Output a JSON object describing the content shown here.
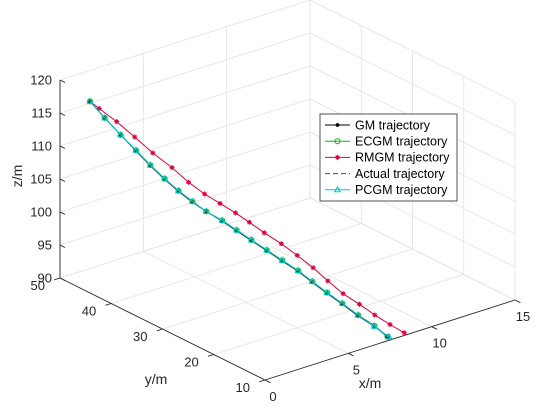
{
  "chart_data": {
    "type": "line3d",
    "xlabel": "x/m",
    "ylabel": "y/m",
    "zlabel": "z/m",
    "x_ticks": [
      "0",
      "5",
      "10",
      "15"
    ],
    "y_ticks": [
      "10",
      "20",
      "30",
      "40",
      "50"
    ],
    "z_ticks": [
      "90",
      "95",
      "100",
      "105",
      "110",
      "115",
      "120"
    ],
    "xlim": [
      0,
      15
    ],
    "ylim": [
      10,
      50
    ],
    "zlim": [
      90,
      120
    ],
    "grid": true,
    "legend_position": "right-inside",
    "series": [
      {
        "name": "GM trajectory",
        "color": "#000000",
        "marker": "dot",
        "line": "solid",
        "points": [
          [
            7.5,
            10.5,
            90.3
          ],
          [
            7.3,
            12.4,
            91.3
          ],
          [
            7.0,
            14.6,
            92.3
          ],
          [
            6.7,
            16.7,
            93.5
          ],
          [
            6.4,
            18.7,
            94.6
          ],
          [
            6.1,
            20.6,
            95.8
          ],
          [
            5.8,
            22.4,
            97.0
          ],
          [
            5.4,
            24.2,
            98.2
          ],
          [
            5.0,
            25.9,
            99.4
          ],
          [
            4.6,
            27.6,
            100.6
          ],
          [
            4.2,
            29.2,
            101.8
          ],
          [
            3.8,
            30.7,
            103.0
          ],
          [
            3.3,
            32.2,
            104.3
          ],
          [
            2.9,
            33.6,
            105.5
          ],
          [
            2.5,
            35.0,
            106.9
          ],
          [
            2.1,
            36.4,
            108.5
          ],
          [
            1.7,
            37.9,
            110.3
          ],
          [
            1.3,
            39.4,
            112.3
          ],
          [
            0.9,
            41.1,
            114.4
          ],
          [
            0.5,
            42.9,
            116.6
          ],
          [
            0.2,
            44.8,
            118.6
          ]
        ]
      },
      {
        "name": "ECGM trajectory",
        "color": "#00c000",
        "marker": "circle",
        "line": "solid",
        "points": [
          [
            7.5,
            10.5,
            90.3
          ],
          [
            7.3,
            12.4,
            91.4
          ],
          [
            7.0,
            14.6,
            92.4
          ],
          [
            6.7,
            16.7,
            93.6
          ],
          [
            6.4,
            18.7,
            94.7
          ],
          [
            6.1,
            20.6,
            95.9
          ],
          [
            5.8,
            22.4,
            97.1
          ],
          [
            5.4,
            24.2,
            98.3
          ],
          [
            5.0,
            25.9,
            99.5
          ],
          [
            4.6,
            27.6,
            100.7
          ],
          [
            4.2,
            29.2,
            101.9
          ],
          [
            3.8,
            30.7,
            103.1
          ],
          [
            3.3,
            32.2,
            104.3
          ],
          [
            2.9,
            33.6,
            105.6
          ],
          [
            2.5,
            35.0,
            107.0
          ],
          [
            2.1,
            36.4,
            108.6
          ],
          [
            1.7,
            37.9,
            110.4
          ],
          [
            1.3,
            39.4,
            112.4
          ],
          [
            0.9,
            41.1,
            114.4
          ],
          [
            0.5,
            42.9,
            116.6
          ],
          [
            0.2,
            44.8,
            118.6
          ]
        ]
      },
      {
        "name": "RMGM trajectory",
        "color": "#e0003c",
        "marker": "star",
        "line": "solid",
        "points": [
          [
            8.6,
            10.8,
            89.9
          ],
          [
            8.3,
            12.6,
            90.7
          ],
          [
            8.0,
            14.6,
            91.6
          ],
          [
            7.7,
            16.6,
            92.7
          ],
          [
            7.3,
            18.5,
            93.9
          ],
          [
            7.0,
            20.5,
            95.3
          ],
          [
            6.7,
            22.4,
            96.8
          ],
          [
            6.3,
            24.2,
            98.3
          ],
          [
            5.9,
            26.0,
            99.7
          ],
          [
            5.4,
            27.7,
            101.1
          ],
          [
            5.0,
            29.3,
            102.4
          ],
          [
            4.6,
            30.7,
            103.6
          ],
          [
            4.1,
            32.1,
            104.9
          ],
          [
            3.6,
            33.5,
            106.2
          ],
          [
            3.1,
            35.0,
            107.8
          ],
          [
            2.6,
            36.6,
            109.8
          ],
          [
            2.0,
            38.4,
            111.8
          ],
          [
            1.5,
            40.3,
            113.9
          ],
          [
            1.0,
            42.2,
            115.9
          ],
          [
            0.5,
            44.0,
            117.6
          ],
          [
            0.2,
            44.8,
            118.6
          ]
        ]
      },
      {
        "name": "Actual trajectory",
        "color": "#4040c0",
        "marker": "none",
        "line": "dashed",
        "points": [
          [
            7.5,
            10.5,
            90.3
          ],
          [
            7.3,
            12.4,
            91.4
          ],
          [
            7.0,
            14.6,
            92.4
          ],
          [
            6.7,
            16.7,
            93.6
          ],
          [
            6.4,
            18.7,
            94.7
          ],
          [
            6.1,
            20.6,
            95.9
          ],
          [
            5.8,
            22.4,
            97.1
          ],
          [
            5.4,
            24.2,
            98.3
          ],
          [
            5.0,
            25.9,
            99.5
          ],
          [
            4.6,
            27.6,
            100.7
          ],
          [
            4.2,
            29.2,
            101.9
          ],
          [
            3.8,
            30.7,
            103.1
          ],
          [
            3.3,
            32.2,
            104.3
          ],
          [
            2.9,
            33.6,
            105.6
          ],
          [
            2.5,
            35.0,
            107.0
          ],
          [
            2.1,
            36.4,
            108.6
          ],
          [
            1.7,
            37.9,
            110.4
          ],
          [
            1.3,
            39.4,
            112.4
          ],
          [
            0.9,
            41.1,
            114.4
          ],
          [
            0.5,
            42.9,
            116.6
          ],
          [
            0.2,
            44.8,
            118.6
          ]
        ]
      },
      {
        "name": "PCGM trajectory",
        "color": "#00c8c8",
        "marker": "triangle",
        "line": "solid",
        "points": [
          [
            7.6,
            10.5,
            90.2
          ],
          [
            7.3,
            12.4,
            91.3
          ],
          [
            7.0,
            14.6,
            92.4
          ],
          [
            6.7,
            16.7,
            93.6
          ],
          [
            6.4,
            18.7,
            94.7
          ],
          [
            6.1,
            20.6,
            95.9
          ],
          [
            5.8,
            22.4,
            97.1
          ],
          [
            5.4,
            24.2,
            98.3
          ],
          [
            5.0,
            25.9,
            99.5
          ],
          [
            4.6,
            27.6,
            100.7
          ],
          [
            4.2,
            29.2,
            101.9
          ],
          [
            3.8,
            30.7,
            103.1
          ],
          [
            3.3,
            32.2,
            104.3
          ],
          [
            2.9,
            33.6,
            105.6
          ],
          [
            2.5,
            35.0,
            107.0
          ],
          [
            2.1,
            36.4,
            108.6
          ],
          [
            1.7,
            37.9,
            110.4
          ],
          [
            1.3,
            39.4,
            112.4
          ],
          [
            0.9,
            41.1,
            114.4
          ],
          [
            0.5,
            42.9,
            116.6
          ],
          [
            0.2,
            44.8,
            118.6
          ]
        ]
      }
    ]
  }
}
